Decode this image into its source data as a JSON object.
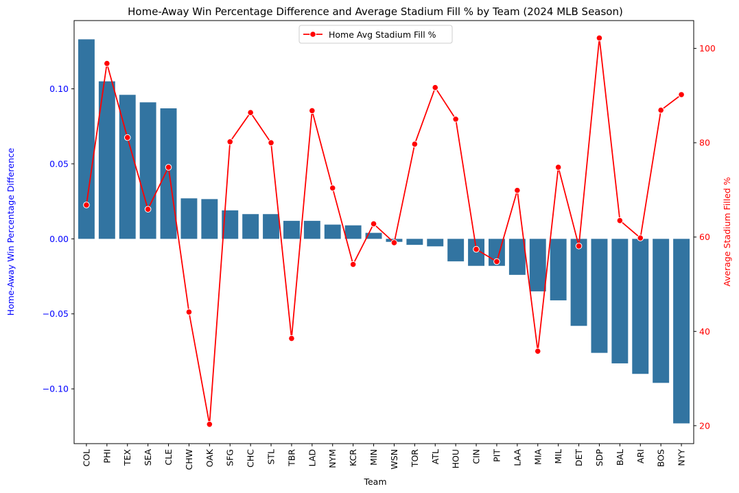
{
  "chart_data": {
    "type": "bar",
    "title": "Home-Away Win Percentage Difference and Average Stadium Fill % by Team (2024 MLB Season)",
    "xlabel": "Team",
    "ylabel": "Home-Away Win Percentage Difference",
    "y2label": "Average Stadium Filled %",
    "categories": [
      "COL",
      "PHI",
      "TEX",
      "SEA",
      "CLE",
      "CHW",
      "OAK",
      "SFG",
      "CHC",
      "STL",
      "TBR",
      "LAD",
      "NYM",
      "KCR",
      "MIN",
      "WSN",
      "TOR",
      "ATL",
      "HOU",
      "CIN",
      "PIT",
      "LAA",
      "MIA",
      "MIL",
      "DET",
      "SDP",
      "BAL",
      "ARI",
      "BOS",
      "NYY"
    ],
    "ylim": [
      -0.1365,
      0.1455
    ],
    "y2lim": [
      16.2,
      105.9
    ],
    "yticks": [
      "0.10",
      "0.05",
      "0.00",
      "−0.05",
      "−0.10"
    ],
    "yticks_values": [
      0.1,
      0.05,
      0.0,
      -0.05,
      -0.1
    ],
    "y2ticks": [
      "100",
      "80",
      "60",
      "40",
      "20"
    ],
    "y2ticks_values": [
      100,
      80,
      60,
      40,
      20
    ],
    "series": [
      {
        "kind": "bar",
        "values": [
          0.133,
          0.105,
          0.096,
          0.091,
          0.087,
          0.027,
          0.0265,
          0.019,
          0.0165,
          0.0165,
          0.012,
          0.012,
          0.0095,
          0.009,
          0.004,
          -0.002,
          -0.004,
          -0.005,
          -0.015,
          -0.018,
          -0.018,
          -0.024,
          -0.035,
          -0.041,
          -0.058,
          -0.076,
          -0.083,
          -0.09,
          -0.096,
          -0.123
        ],
        "color": "#3274a1"
      },
      {
        "kind": "line",
        "name": "Home Avg Stadium Fill %",
        "axis": "right",
        "values": [
          66.8,
          96.8,
          81.1,
          65.9,
          74.8,
          44.1,
          20.3,
          80.2,
          86.4,
          80.0,
          38.5,
          86.8,
          70.4,
          54.2,
          62.8,
          58.8,
          79.7,
          91.7,
          85.0,
          57.4,
          54.8,
          69.9,
          35.8,
          74.8,
          58.1,
          102.2,
          63.5,
          59.8,
          86.9,
          90.2
        ],
        "color": "#ff0000"
      }
    ],
    "legend": "top-center",
    "grid": false
  },
  "colors": {
    "bar": "#3274a1",
    "line": "#ff0000",
    "left_axis": "#0000ff",
    "right_axis": "#ff0000"
  }
}
